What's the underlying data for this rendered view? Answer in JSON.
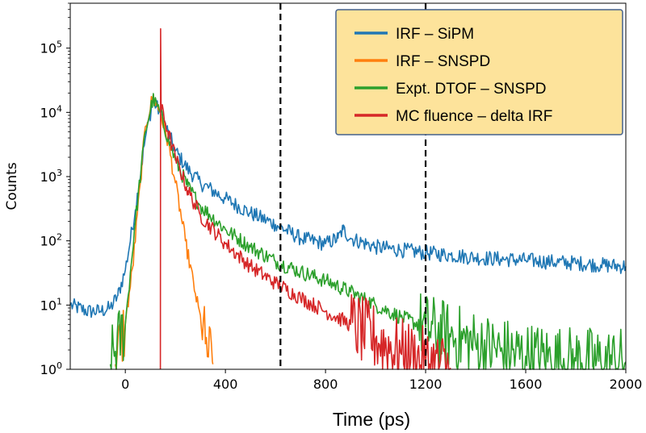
{
  "chart_data": {
    "type": "line",
    "title": "",
    "xlabel": "Time (ps)",
    "ylabel": "Counts",
    "yscale": "log",
    "xlim": [
      -220,
      2000
    ],
    "ylim": [
      1,
      500000
    ],
    "xticks": [
      0,
      400,
      800,
      1200,
      1600,
      2000
    ],
    "xtick_labels": [
      "0",
      "400",
      "800",
      "1200",
      "1600",
      "2000"
    ],
    "yticks": [
      1,
      10,
      100,
      1000,
      10000,
      100000
    ],
    "ytick_labels": [
      {
        "base": "10",
        "exp": "0"
      },
      {
        "base": "10",
        "exp": "1"
      },
      {
        "base": "10",
        "exp": "2"
      },
      {
        "base": "10",
        "exp": "3"
      },
      {
        "base": "10",
        "exp": "4"
      },
      {
        "base": "10",
        "exp": "5"
      }
    ],
    "vlines": [
      620,
      1200
    ],
    "legend_position": "top-right",
    "series": [
      {
        "name": "IRF – SiPM",
        "color": "#1f77b4",
        "points": [
          [
            -220,
            10
          ],
          [
            -150,
            8
          ],
          [
            -100,
            8
          ],
          [
            -60,
            9
          ],
          [
            -30,
            14
          ],
          [
            0,
            35
          ],
          [
            40,
            300
          ],
          [
            80,
            4000
          ],
          [
            110,
            15000
          ],
          [
            140,
            10000
          ],
          [
            170,
            5000
          ],
          [
            200,
            2500
          ],
          [
            250,
            1300
          ],
          [
            300,
            800
          ],
          [
            400,
            450
          ],
          [
            500,
            270
          ],
          [
            600,
            180
          ],
          [
            700,
            110
          ],
          [
            800,
            90
          ],
          [
            850,
            110
          ],
          [
            870,
            150
          ],
          [
            900,
            110
          ],
          [
            1000,
            80
          ],
          [
            1100,
            72
          ],
          [
            1200,
            65
          ],
          [
            1300,
            60
          ],
          [
            1400,
            55
          ],
          [
            1500,
            52
          ],
          [
            1600,
            50
          ],
          [
            1700,
            47
          ],
          [
            1800,
            45
          ],
          [
            1900,
            42
          ],
          [
            2000,
            40
          ]
        ]
      },
      {
        "name": "IRF – SNSPD",
        "color": "#ff7f0e",
        "points": [
          [
            -40,
            1.2
          ],
          [
            0,
            5
          ],
          [
            30,
            40
          ],
          [
            60,
            800
          ],
          [
            80,
            6000
          ],
          [
            110,
            17500
          ],
          [
            140,
            10000
          ],
          [
            170,
            3500
          ],
          [
            200,
            800
          ],
          [
            240,
            100
          ],
          [
            280,
            15
          ],
          [
            320,
            2.5
          ],
          [
            350,
            1.2
          ]
        ]
      },
      {
        "name": "Expt. DTOF – SNSPD",
        "color": "#2ca02c",
        "points": [
          [
            -60,
            1.2
          ],
          [
            0,
            5
          ],
          [
            40,
            200
          ],
          [
            80,
            5000
          ],
          [
            110,
            16000
          ],
          [
            140,
            10000
          ],
          [
            170,
            4000
          ],
          [
            200,
            1800
          ],
          [
            250,
            700
          ],
          [
            300,
            350
          ],
          [
            400,
            150
          ],
          [
            500,
            80
          ],
          [
            600,
            48
          ],
          [
            700,
            33
          ],
          [
            800,
            24
          ],
          [
            900,
            16
          ],
          [
            1000,
            10
          ],
          [
            1100,
            6.5
          ],
          [
            1200,
            4.5
          ],
          [
            1300,
            3.2
          ],
          [
            1400,
            2.4
          ],
          [
            1500,
            1.9
          ],
          [
            1600,
            1.6
          ],
          [
            1700,
            1.45
          ],
          [
            1800,
            1.35
          ],
          [
            1900,
            1.3
          ],
          [
            2000,
            1.3
          ]
        ]
      },
      {
        "name": "MC fluence – delta IRF",
        "color": "#d62728",
        "points": [
          [
            140,
            1
          ],
          [
            141,
            200000
          ],
          [
            143,
            12000
          ],
          [
            170,
            5000
          ],
          [
            200,
            2000
          ],
          [
            250,
            600
          ],
          [
            300,
            250
          ],
          [
            400,
            90
          ],
          [
            500,
            40
          ],
          [
            600,
            22
          ],
          [
            700,
            13
          ],
          [
            800,
            8
          ],
          [
            900,
            5
          ],
          [
            1000,
            3
          ],
          [
            1100,
            1.8
          ],
          [
            1200,
            1.3
          ],
          [
            1300,
            1.05
          ]
        ]
      }
    ]
  }
}
